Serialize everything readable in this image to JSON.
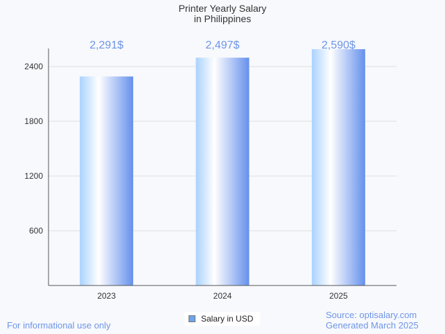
{
  "chart_data": {
    "type": "bar",
    "title": [
      "Printer Yearly Salary",
      "in Philippines"
    ],
    "categories": [
      "2023",
      "2024",
      "2025"
    ],
    "values": [
      2291,
      2497,
      2590
    ],
    "data_labels": [
      "2,291$",
      "2,497$",
      "2,590$"
    ],
    "yticks": [
      600,
      1200,
      1800,
      2400
    ],
    "ylim": [
      0,
      2600
    ],
    "xlabel": "",
    "ylabel": "",
    "grid": true,
    "legend": {
      "label": "Salary in USD",
      "placement": "bottom-center"
    },
    "colors": {
      "bar_light": "#a9d2ff",
      "bar_dark": "#6590ec",
      "label": "#6d95e6"
    }
  },
  "footer": {
    "left": "For informational use only",
    "source": "Source: optisalary.com",
    "generated": "Generated March 2025"
  }
}
